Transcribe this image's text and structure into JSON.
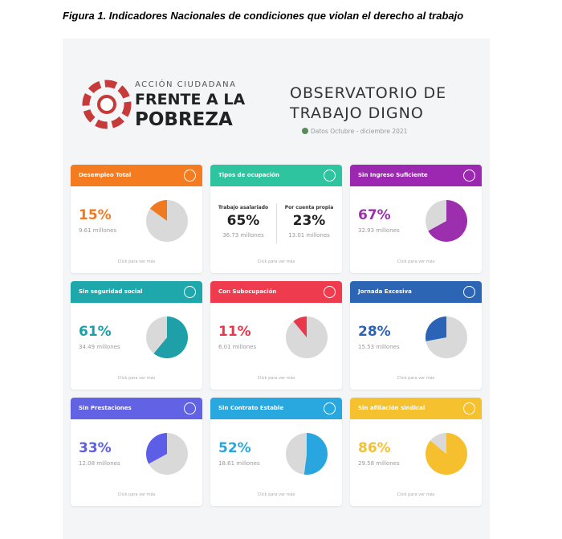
{
  "figure_title": "Figura 1. Indicadores Nacionales de condiciones que violan el derecho al trabajo",
  "logo": {
    "line1": "ACCIÓN CIUDADANA",
    "line2": "FRENTE A LA",
    "line3": "POBREZA"
  },
  "observatory": {
    "line1": "OBSERVATORIO DE",
    "line2": "TRABAJO DIGNO",
    "date": "Datos Octubre - diciembre 2021"
  },
  "cards": [
    {
      "header": "Desempleo Total",
      "header_color": "#f47b20",
      "value": 15,
      "value_label": "15%",
      "color": "#f07a22",
      "count": "9.61 millones",
      "link": "Click para ver más"
    },
    {
      "header": "Tipos de ocupación",
      "header_color": "#2ec4a0",
      "link": "Click para ver más",
      "items": [
        {
          "label": "Trabajo asalariado",
          "value_label": "65%",
          "count": "36.73 millones"
        },
        {
          "label": "Por cuenta propia",
          "value_label": "23%",
          "count": "13.01 millones"
        }
      ]
    },
    {
      "header": "Sin Ingreso Suficiente",
      "header_color": "#9c27b0",
      "value": 67,
      "value_label": "67%",
      "color": "#9b2fae",
      "count": "32.93 millones",
      "link": "Click para ver más"
    },
    {
      "header": "Sin seguridad social",
      "header_color": "#1fa8ac",
      "value": 61,
      "value_label": "61%",
      "color": "#1fa0a8",
      "count": "34.49 millones",
      "link": "Click para ver más"
    },
    {
      "header": "Con Subocupación",
      "header_color": "#ef3b4e",
      "value": 11,
      "value_label": "11%",
      "color": "#e8384b",
      "count": "6.01 millones",
      "link": "Click para ver más"
    },
    {
      "header": "Jornada Excesiva",
      "header_color": "#2d65b5",
      "value": 28,
      "value_label": "28%",
      "color": "#2b63b6",
      "count": "15.53 millones",
      "link": "Click para ver más"
    },
    {
      "header": "Sin Prestaciones",
      "header_color": "#6262e4",
      "value": 33,
      "value_label": "33%",
      "color": "#5d5ee8",
      "count": "12.08 millones",
      "link": "Click para ver más"
    },
    {
      "header": "Sin Contrato Estable",
      "header_color": "#29a8e0",
      "value": 52,
      "value_label": "52%",
      "color": "#29a6e0",
      "count": "18.61 millones",
      "link": "Click para ver más"
    },
    {
      "header": "Sin afiliación sindical",
      "header_color": "#f6c12f",
      "value": 86,
      "value_label": "86%",
      "color": "#f5bf2e",
      "count": "29.58 millones",
      "link": "Click para ver más"
    }
  ]
}
